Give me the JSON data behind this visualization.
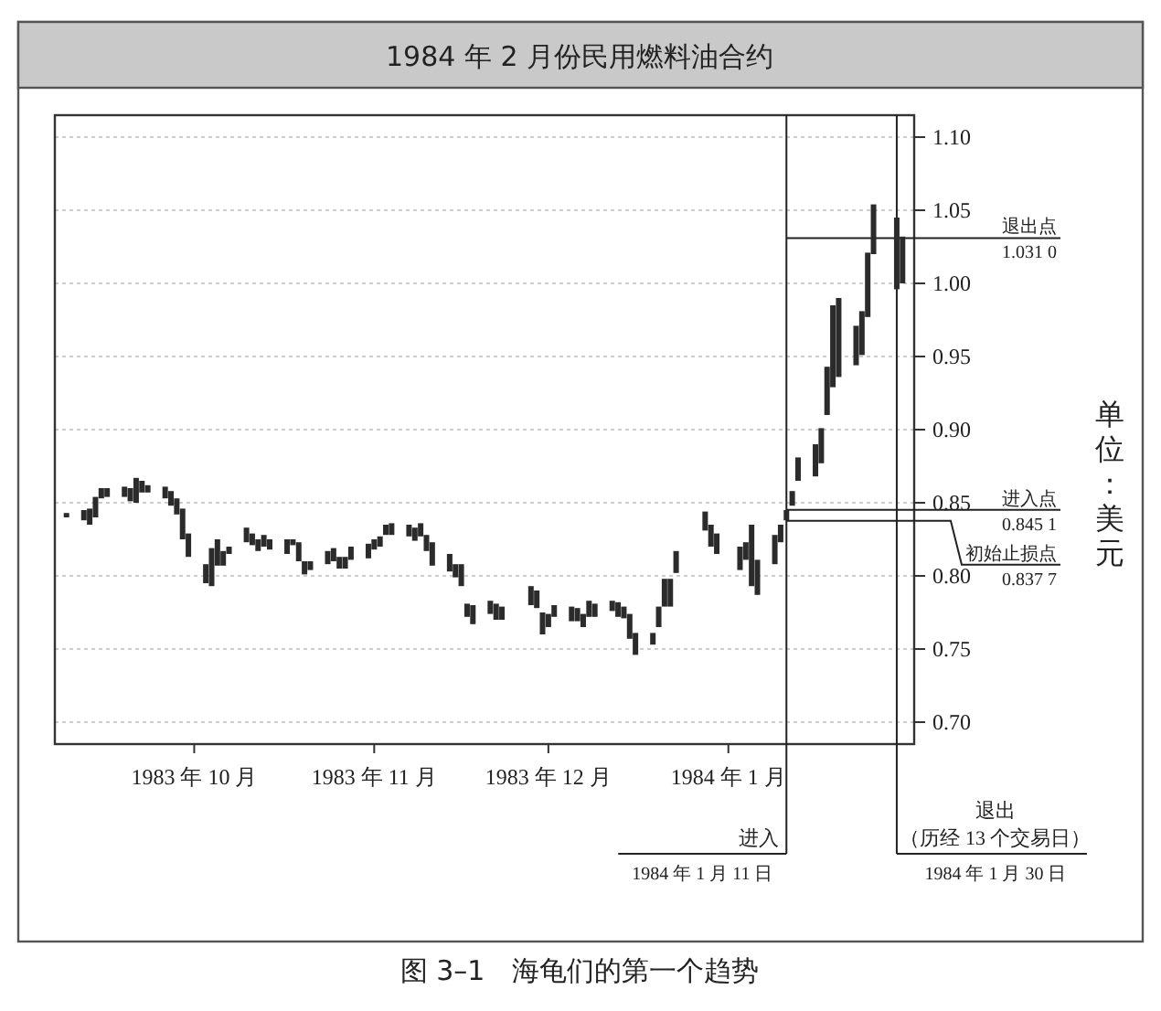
{
  "chart_data": {
    "type": "bar",
    "title": "1984 年 2 月份民用燃料油合约",
    "ylabel": "单位：美元",
    "annotations": [
      "图 3–1　海龟们的第一个趋势"
    ],
    "x": [
      "1983-09-09",
      "1983-09-12",
      "1983-09-13",
      "1983-09-14",
      "1983-09-15",
      "1983-09-16",
      "1983-09-19",
      "1983-09-20",
      "1983-09-21",
      "1983-09-22",
      "1983-09-23",
      "1983-09-26",
      "1983-09-27",
      "1983-09-28",
      "1983-09-29",
      "1983-09-30",
      "1983-10-03",
      "1983-10-04",
      "1983-10-05",
      "1983-10-06",
      "1983-10-07",
      "1983-10-10",
      "1983-10-11",
      "1983-10-12",
      "1983-10-13",
      "1983-10-14",
      "1983-10-17",
      "1983-10-18",
      "1983-10-19",
      "1983-10-20",
      "1983-10-21",
      "1983-10-24",
      "1983-10-25",
      "1983-10-26",
      "1983-10-27",
      "1983-10-28",
      "1983-10-31",
      "1983-11-01",
      "1983-11-02",
      "1983-11-03",
      "1983-11-04",
      "1983-11-07",
      "1983-11-08",
      "1983-11-09",
      "1983-11-10",
      "1983-11-11",
      "1983-11-14",
      "1983-11-15",
      "1983-11-16",
      "1983-11-17",
      "1983-11-18",
      "1983-11-21",
      "1983-11-22",
      "1983-11-23",
      "1983-11-28",
      "1983-11-29",
      "1983-11-30",
      "1983-12-01",
      "1983-12-02",
      "1983-12-05",
      "1983-12-06",
      "1983-12-07",
      "1983-12-08",
      "1983-12-09",
      "1983-12-12",
      "1983-12-13",
      "1983-12-14",
      "1983-12-15",
      "1983-12-16",
      "1983-12-19",
      "1983-12-20",
      "1983-12-21",
      "1983-12-22",
      "1983-12-23",
      "1983-12-28",
      "1983-12-29",
      "1983-12-30",
      "1984-01-03",
      "1984-01-04",
      "1984-01-05",
      "1984-01-06",
      "1984-01-09",
      "1984-01-10",
      "1984-01-11",
      "1984-01-12",
      "1984-01-13",
      "1984-01-16",
      "1984-01-17",
      "1984-01-18",
      "1984-01-19",
      "1984-01-20",
      "1984-01-23",
      "1984-01-24",
      "1984-01-25",
      "1984-01-26",
      "1984-01-30",
      "1984-01-31"
    ],
    "base": [
      0.84,
      0.838,
      0.835,
      0.84,
      0.853,
      0.854,
      0.854,
      0.851,
      0.85,
      0.857,
      0.857,
      0.853,
      0.848,
      0.842,
      0.825,
      0.813,
      0.795,
      0.793,
      0.807,
      0.807,
      0.815,
      0.823,
      0.821,
      0.817,
      0.82,
      0.818,
      0.815,
      0.821,
      0.81,
      0.801,
      0.804,
      0.808,
      0.81,
      0.805,
      0.805,
      0.811,
      0.812,
      0.818,
      0.82,
      0.828,
      0.828,
      0.827,
      0.824,
      0.827,
      0.817,
      0.807,
      0.803,
      0.799,
      0.793,
      0.772,
      0.767,
      0.774,
      0.77,
      0.77,
      0.78,
      0.778,
      0.76,
      0.765,
      0.772,
      0.769,
      0.769,
      0.765,
      0.772,
      0.772,
      0.776,
      0.772,
      0.771,
      0.757,
      0.746,
      0.753,
      0.765,
      0.779,
      0.779,
      0.802,
      0.831,
      0.82,
      0.815,
      0.804,
      0.811,
      0.793,
      0.787,
      0.808,
      0.823,
      0.838,
      0.848,
      0.865,
      0.868,
      0.877,
      0.91,
      0.929,
      0.936,
      0.944,
      0.951,
      0.977,
      1.02,
      0.996,
      1.0
    ],
    "values": [
      0.003,
      0.007,
      0.011,
      0.014,
      0.007,
      0.006,
      0.007,
      0.009,
      0.017,
      0.008,
      0.005,
      0.008,
      0.01,
      0.011,
      0.021,
      0.016,
      0.013,
      0.026,
      0.018,
      0.01,
      0.005,
      0.01,
      0.008,
      0.008,
      0.008,
      0.007,
      0.01,
      0.004,
      0.013,
      0.009,
      0.006,
      0.009,
      0.009,
      0.008,
      0.008,
      0.009,
      0.01,
      0.007,
      0.007,
      0.007,
      0.008,
      0.008,
      0.009,
      0.009,
      0.011,
      0.016,
      0.012,
      0.009,
      0.015,
      0.009,
      0.013,
      0.009,
      0.011,
      0.009,
      0.013,
      0.012,
      0.015,
      0.009,
      0.008,
      0.01,
      0.009,
      0.009,
      0.011,
      0.009,
      0.007,
      0.01,
      0.008,
      0.017,
      0.015,
      0.008,
      0.014,
      0.019,
      0.019,
      0.015,
      0.013,
      0.015,
      0.014,
      0.016,
      0.012,
      0.042,
      0.024,
      0.02,
      0.012,
      0.007,
      0.01,
      0.016,
      0.022,
      0.024,
      0.033,
      0.056,
      0.054,
      0.027,
      0.03,
      0.044,
      0.034,
      0.049,
      0.032
    ],
    "color": "#2b2b2b",
    "xlim": [
      "1983-09-07",
      "1984-02-02"
    ],
    "xticks": [
      {
        "value": "1983-10-01",
        "label": "1983 年 10 月"
      },
      {
        "value": "1983-11-01",
        "label": "1983 年 11 月"
      },
      {
        "value": "1983-12-01",
        "label": "1983 年 12 月"
      },
      {
        "value": "1984-01-01",
        "label": "1984 年 1 月"
      }
    ],
    "ylim": [
      0.685,
      1.115
    ],
    "yticks": [
      {
        "value": 0.7,
        "label": "0.70"
      },
      {
        "value": 0.75,
        "label": "0.75"
      },
      {
        "value": 0.8,
        "label": "0.80"
      },
      {
        "value": 0.85,
        "label": "0.85"
      },
      {
        "value": 0.9,
        "label": "0.90"
      },
      {
        "value": 0.95,
        "label": "0.95"
      },
      {
        "value": 1.0,
        "label": "1.00"
      },
      {
        "value": 1.05,
        "label": "1.05"
      },
      {
        "value": 1.1,
        "label": "1.10"
      }
    ],
    "grid": "y",
    "ref_lines": [
      {
        "axis": "y",
        "value": 1.031,
        "label": "退出点\n1.031 0",
        "color": "#222222"
      },
      {
        "axis": "y",
        "value": 0.8451,
        "label": "进入点\n0.845 1",
        "color": "#222222"
      },
      {
        "axis": "y",
        "value": 0.8377,
        "label": "初始止损点\n0.837 7",
        "color": "#222222"
      },
      {
        "axis": "x",
        "value": "1984-01-11",
        "label": "进入\n1984 年 1 月 11 日",
        "color": "#222222"
      },
      {
        "axis": "x",
        "value": "1984-01-30",
        "label": "退出（历经 13 个交易日）\n1984 年 1 月 30 日",
        "color": "#222222"
      }
    ]
  }
}
